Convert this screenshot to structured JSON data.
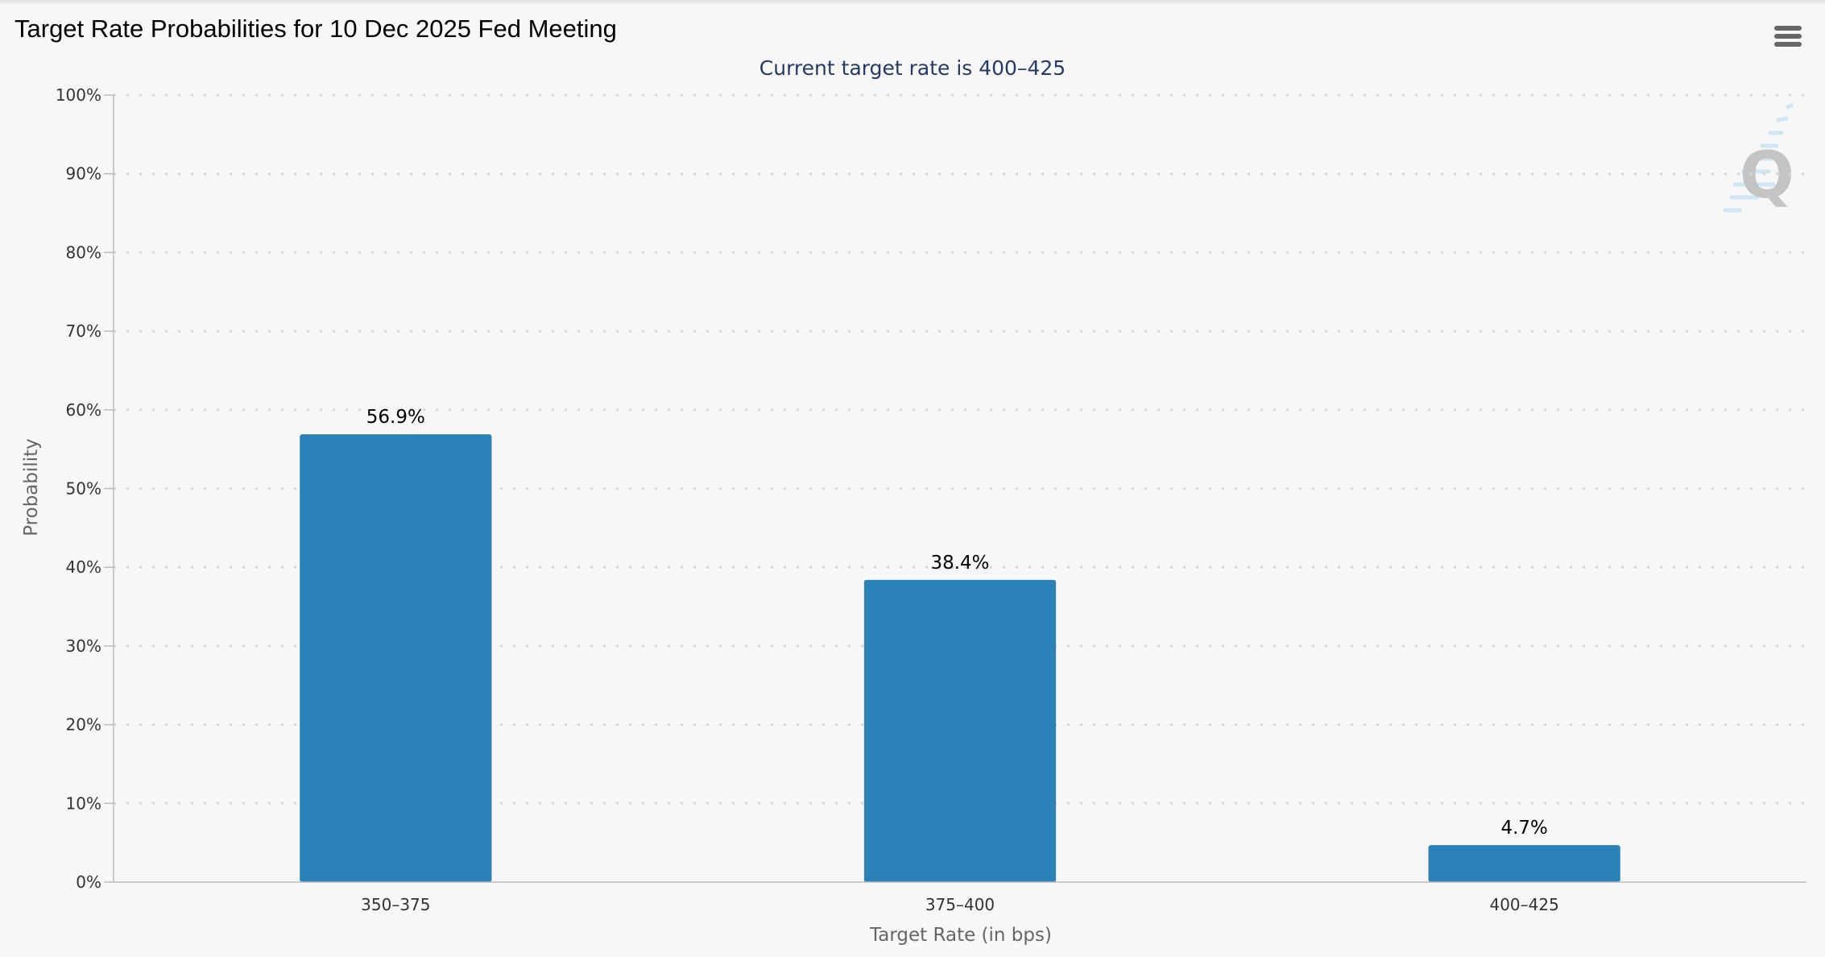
{
  "chart_data": {
    "type": "bar",
    "title": "Target Rate Probabilities for 10 Dec 2025 Fed Meeting",
    "subtitle": "Current target rate is 400–425",
    "xlabel": "Target Rate (in bps)",
    "ylabel": "Probability",
    "categories": [
      "350–375",
      "375–400",
      "400–425"
    ],
    "values": [
      56.9,
      38.4,
      4.7
    ],
    "data_labels": [
      "56.9%",
      "38.4%",
      "4.7%"
    ],
    "ylim": [
      0,
      100
    ],
    "yticks": [
      "0%",
      "10%",
      "20%",
      "30%",
      "40%",
      "50%",
      "60%",
      "70%",
      "80%",
      "90%",
      "100%"
    ],
    "grid": true,
    "bar_color": "#2a82b9",
    "legend": "none"
  },
  "toolbar": {
    "menu_icon": "hamburger-menu-icon"
  },
  "logo": {
    "icon": "quikstrike-q-logo",
    "text": "Q"
  }
}
